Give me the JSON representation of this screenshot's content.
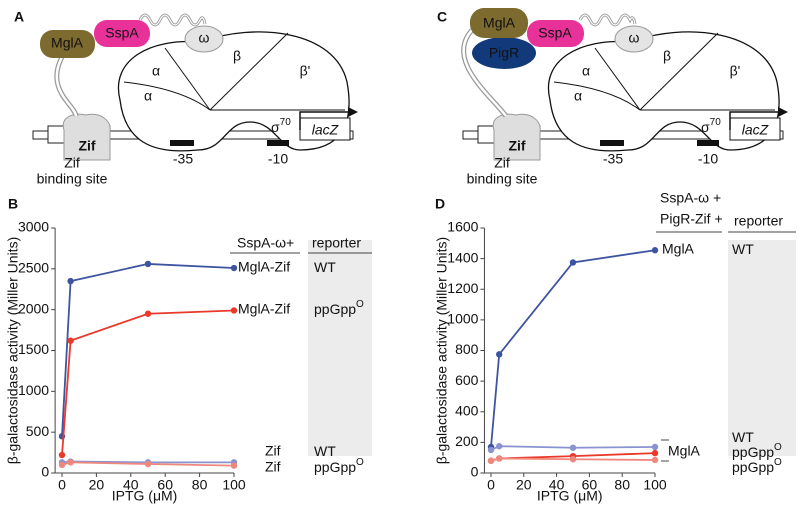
{
  "panel_a": {
    "label": "A",
    "bait": "MglA",
    "prey": "SspA",
    "omega": "ω",
    "alpha1": "α",
    "alpha2": "α",
    "beta": "β",
    "beta_prime": "β'",
    "zif": "Zif",
    "sigma": "σ",
    "sigma_sup": "70",
    "gene": "lacZ",
    "minus35": "-35",
    "minus10": "-10",
    "site_line1": "Zif",
    "site_line2": "binding site"
  },
  "panel_c": {
    "label": "C",
    "bait": "MglA",
    "pigr": "PigR",
    "prey": "SspA",
    "omega": "ω",
    "alpha1": "α",
    "alpha2": "α",
    "beta": "β",
    "beta_prime": "β'",
    "zif": "Zif",
    "sigma": "σ",
    "sigma_sup": "70",
    "gene": "lacZ",
    "minus35": "-35",
    "minus10": "-10",
    "site_line1": "Zif",
    "site_line2": "binding site"
  },
  "chart_data": [
    {
      "type": "line",
      "panel_label": "B",
      "x_label": "IPTG (μM)",
      "y_label": "β-galactosidase activity (Miller Units)",
      "header": [
        "SspA-ω+"
      ],
      "reporter_header": "reporter",
      "x": [
        0,
        5,
        50,
        100
      ],
      "xlim": [
        -4,
        100
      ],
      "xticks": [
        0,
        20,
        40,
        60,
        80,
        100
      ],
      "ylim": [
        0,
        3000
      ],
      "yticks": [
        0,
        500,
        1000,
        1500,
        2000,
        2500,
        3000
      ],
      "series": [
        {
          "name": "MglA-Zif",
          "reporter": "WT",
          "color": "#3d55a0",
          "values": [
            450,
            2350,
            2560,
            2510
          ]
        },
        {
          "name": "MglA-Zif",
          "reporter": "ppGpp",
          "reporter_sup": "O",
          "color": "#e8392a",
          "values": [
            220,
            1620,
            1950,
            1990
          ]
        },
        {
          "name": "Zif",
          "reporter": "WT",
          "color": "#8a93d0",
          "values": [
            130,
            140,
            130,
            130
          ]
        },
        {
          "name": "Zif",
          "reporter": "ppGpp",
          "reporter_sup": "O",
          "color": "#f0877c",
          "values": [
            100,
            130,
            110,
            90
          ]
        }
      ]
    },
    {
      "type": "line",
      "panel_label": "D",
      "x_label": "IPTG (μM)",
      "y_label": "β-galactosidase activity (Miller Units)",
      "header": [
        "SspA-ω +",
        "PigR-Zif +"
      ],
      "reporter_header": "reporter",
      "group_label": "MglA",
      "x": [
        0,
        5,
        50,
        100
      ],
      "xlim": [
        -4,
        100
      ],
      "xticks": [
        0,
        20,
        40,
        60,
        80,
        100
      ],
      "ylim": [
        0,
        1600
      ],
      "yticks": [
        0,
        200,
        400,
        600,
        800,
        1000,
        1200,
        1400,
        1600
      ],
      "series": [
        {
          "name": "MglA",
          "reporter": "WT",
          "color": "#3d55a0",
          "values": [
            170,
            775,
            1375,
            1455
          ]
        },
        {
          "reporter": "WT",
          "color": "#8a93d0",
          "values": [
            150,
            175,
            165,
            170
          ]
        },
        {
          "reporter": "ppGpp",
          "reporter_sup": "O",
          "color": "#e8392a",
          "values": [
            80,
            95,
            110,
            130
          ]
        },
        {
          "reporter": "ppGpp",
          "reporter_sup": "O",
          "color": "#f0877c",
          "values": [
            80,
            95,
            90,
            85
          ]
        }
      ]
    }
  ]
}
